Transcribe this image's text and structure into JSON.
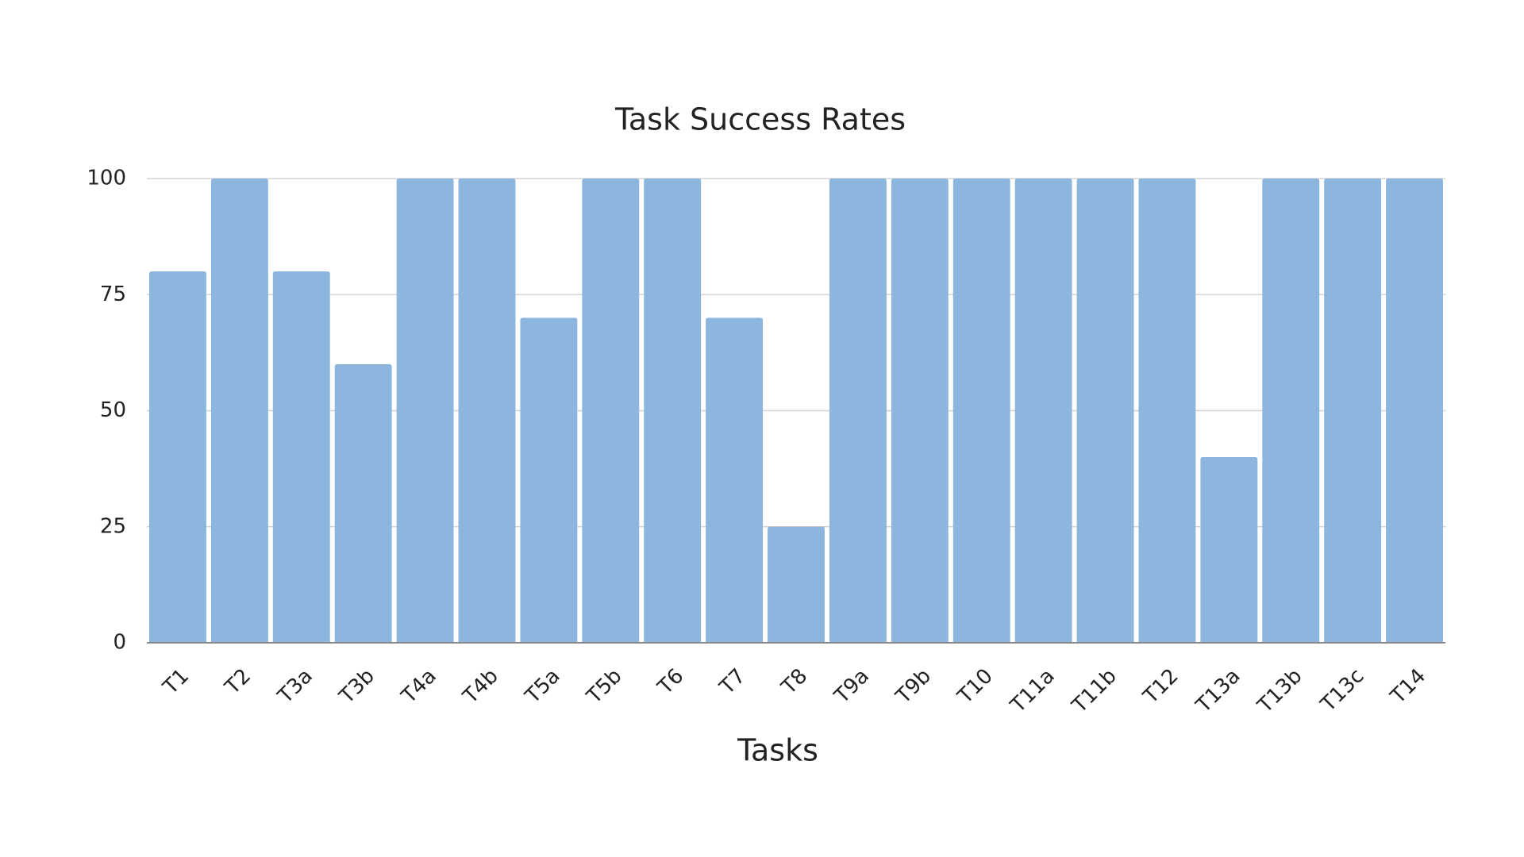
{
  "chart_data": {
    "type": "bar",
    "title": "Task Success Rates",
    "x_label": "Tasks",
    "categories": [
      "T1",
      "T2",
      "T3a",
      "T3b",
      "T4a",
      "T4b",
      "T5a",
      "T5b",
      "T6",
      "T7",
      "T8",
      "T9a",
      "T9b",
      "T10",
      "T11a",
      "T11b",
      "T12",
      "T13a",
      "T13b",
      "T13c",
      "T14"
    ],
    "values": [
      80,
      100,
      80,
      60,
      100,
      100,
      70,
      100,
      100,
      70,
      25,
      100,
      100,
      100,
      100,
      100,
      100,
      40,
      100,
      100,
      100
    ],
    "color": "#8cb6de",
    "ylim": [
      0,
      100
    ],
    "yticks": [
      0,
      25,
      50,
      75,
      100
    ],
    "grid": true
  }
}
